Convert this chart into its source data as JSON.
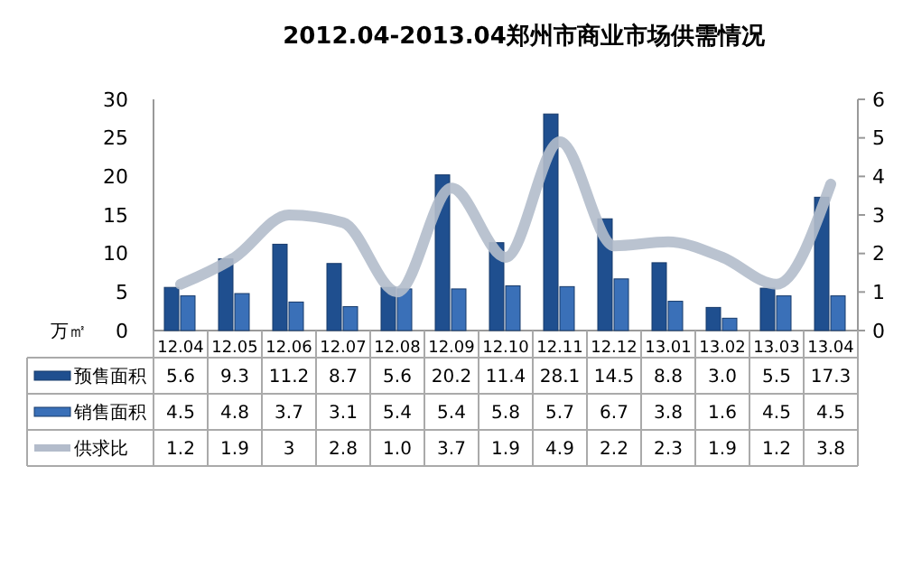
{
  "chart_data": {
    "type": "bar",
    "title": "2012.04-2013.04郑州市商业市场供需情况",
    "ylabel": "万㎡",
    "categories": [
      "12.04",
      "12.05",
      "12.06",
      "12.07",
      "12.08",
      "12.09",
      "12.10",
      "12.11",
      "12.12",
      "13.01",
      "13.02",
      "13.03",
      "13.04"
    ],
    "series": [
      {
        "name": "预售面积",
        "color": "#1f4f8f",
        "values": [
          5.6,
          9.3,
          11.2,
          8.7,
          5.6,
          20.2,
          11.4,
          28.1,
          14.5,
          8.8,
          3.0,
          5.5,
          17.3
        ],
        "value_labels": [
          "5.6",
          "9.3",
          "11.2",
          "8.7",
          "5.6",
          "20.2",
          "11.4",
          "28.1",
          "14.5",
          "8.8",
          "3.0",
          "5.5",
          "17.3"
        ]
      },
      {
        "name": "销售面积",
        "color": "#3a70b8",
        "values": [
          4.5,
          4.8,
          3.7,
          3.1,
          5.4,
          5.4,
          5.8,
          5.7,
          6.7,
          3.8,
          1.6,
          4.5,
          4.5
        ],
        "value_labels": [
          "4.5",
          "4.8",
          "3.7",
          "3.1",
          "5.4",
          "5.4",
          "5.8",
          "5.7",
          "6.7",
          "3.8",
          "1.6",
          "4.5",
          "4.5"
        ]
      },
      {
        "name": "供求比",
        "type": "line",
        "axis": "y2",
        "color": "#b3bccb",
        "values": [
          1.2,
          1.9,
          3,
          2.8,
          1.0,
          3.7,
          1.9,
          4.9,
          2.2,
          2.3,
          1.9,
          1.2,
          3.8
        ],
        "value_labels": [
          "1.2",
          "1.9",
          "3",
          "2.8",
          "1.0",
          "3.7",
          "1.9",
          "4.9",
          "2.2",
          "2.3",
          "1.9",
          "1.2",
          "3.8"
        ]
      }
    ],
    "ylim": [
      0,
      30
    ],
    "yticks": [
      0,
      5,
      10,
      15,
      20,
      25,
      30
    ],
    "y2lim": [
      0,
      6
    ],
    "y2ticks": [
      0,
      1,
      2,
      3,
      4,
      5,
      6
    ],
    "legend": "bottom",
    "grid": false
  }
}
